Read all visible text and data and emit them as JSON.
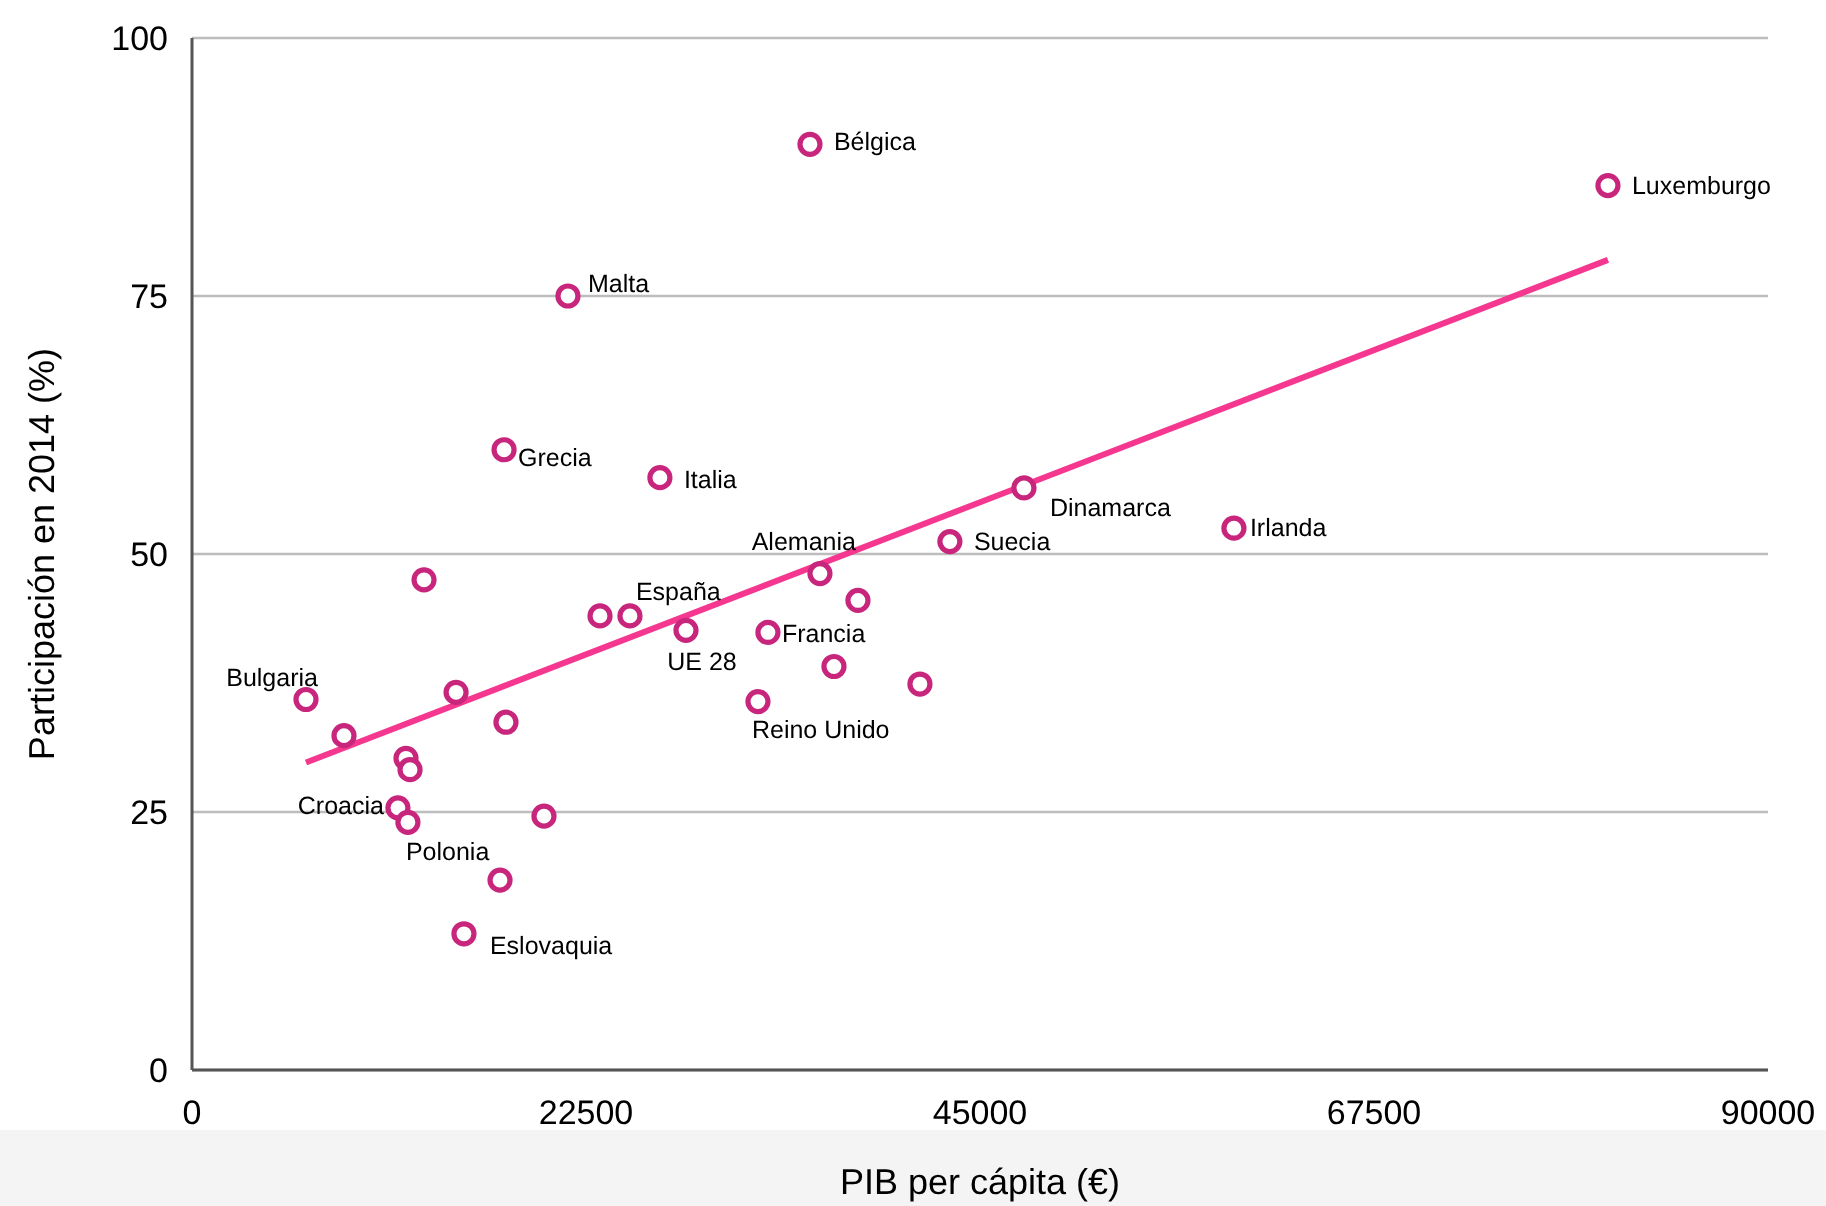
{
  "chart_data": {
    "type": "scatter",
    "xlabel": "PIB per cápita (€)",
    "ylabel": "Participación en 2014 (%)",
    "xlim": [
      0,
      90000
    ],
    "xticks": [
      0,
      22500,
      45000,
      67500,
      90000
    ],
    "ylim": [
      0,
      100
    ],
    "yticks": [
      0,
      25,
      50,
      75,
      100
    ],
    "grid": "y",
    "marker": "circle",
    "series": [
      {
        "color": "#c8267c",
        "x": [
          6510,
          8680,
          12220,
          12450,
          11760,
          12330,
          13250,
          15080,
          17930,
          17820,
          17590,
          15530,
          20100,
          21470,
          23300,
          25010,
          26720,
          28210,
          32890,
          32320,
          35860,
          35290,
          36660,
          38030,
          41570,
          43280,
          47510,
          59500,
          80860
        ],
        "values": [
          35.9,
          32.4,
          30.2,
          29.1,
          25.4,
          24.0,
          47.5,
          36.6,
          33.7,
          60.1,
          18.4,
          13.2,
          24.6,
          75.0,
          44.0,
          44.0,
          57.4,
          42.6,
          42.4,
          35.7,
          48.1,
          89.7,
          39.1,
          45.5,
          37.4,
          51.2,
          56.4,
          52.5,
          85.7
        ]
      },
      {
        "type": "line",
        "color": "#f5378f",
        "marker": "none",
        "x": [
          6510,
          80860
        ],
        "values": [
          29.8,
          78.5
        ]
      }
    ],
    "annotations": [
      {
        "text": "Bélgica",
        "x": 35290,
        "y": 89.7
      },
      {
        "text": "Luxemburgo",
        "x": 80860,
        "y": 85.7
      },
      {
        "text": "Malta",
        "x": 21470,
        "y": 75.0
      },
      {
        "text": "Grecia",
        "x": 17820,
        "y": 60.1
      },
      {
        "text": "Italia",
        "x": 26720,
        "y": 57.4
      },
      {
        "text": "Alemania",
        "x": 35860,
        "y": 48.1
      },
      {
        "text": "Suecia",
        "x": 43280,
        "y": 51.2
      },
      {
        "text": "Dinamarca",
        "x": 47510,
        "y": 56.4
      },
      {
        "text": "Irlanda",
        "x": 59500,
        "y": 52.5
      },
      {
        "text": "España",
        "x": 25010,
        "y": 44.0
      },
      {
        "text": "UE 28",
        "x": 28210,
        "y": 42.6
      },
      {
        "text": "Francia",
        "x": 32890,
        "y": 42.4
      },
      {
        "text": "Reino Unido",
        "x": 32320,
        "y": 35.7
      },
      {
        "text": "Bulgaria",
        "x": 6510,
        "y": 35.9
      },
      {
        "text": "Croacia",
        "x": 11760,
        "y": 25.4
      },
      {
        "text": "Polonia",
        "x": 12330,
        "y": 24.0
      },
      {
        "text": "Eslovaquia",
        "x": 15530,
        "y": 13.2
      }
    ]
  }
}
